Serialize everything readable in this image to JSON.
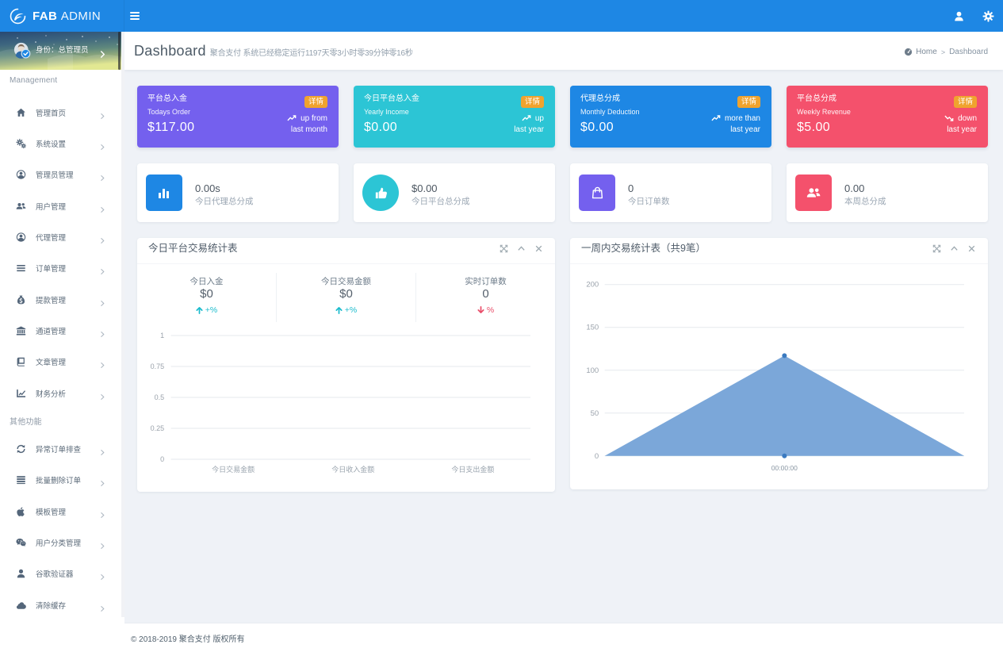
{
  "navbar": {
    "logo_bold": "FAB",
    "logo_light": "ADMIN",
    "icons": [
      "user-icon",
      "gear-icon"
    ],
    "accent_color": "#1e87e4"
  },
  "sidebar": {
    "user_panel": {
      "label": "身份：总管理员"
    },
    "sections": [
      {
        "label": "Management",
        "items": [
          {
            "icon": "home-icon",
            "label": "管理首页"
          },
          {
            "icon": "gears-icon",
            "label": "系统设置"
          },
          {
            "icon": "user-circle-icon",
            "label": "管理员管理"
          },
          {
            "icon": "users-icon",
            "label": "用户管理"
          },
          {
            "icon": "agent-circle-icon",
            "label": "代理管理"
          },
          {
            "icon": "list-icon",
            "label": "订单管理"
          },
          {
            "icon": "money-bag-icon",
            "label": "提款管理"
          },
          {
            "icon": "bank-icon",
            "label": "通道管理"
          },
          {
            "icon": "book-icon",
            "label": "文章管理"
          },
          {
            "icon": "line-chart-icon",
            "label": "财务分析"
          }
        ]
      },
      {
        "label": "其他功能",
        "items": [
          {
            "icon": "refresh-icon",
            "label": "异常订单排查"
          },
          {
            "icon": "rows-icon",
            "label": "批量删除订单"
          },
          {
            "icon": "apple-icon",
            "label": "模板管理"
          },
          {
            "icon": "wechat-icon",
            "label": "用户分类管理"
          },
          {
            "icon": "person-icon",
            "label": "谷歌验证器"
          },
          {
            "icon": "cloud-icon",
            "label": "清除缓存"
          }
        ]
      }
    ]
  },
  "header": {
    "title": "Dashboard",
    "subtitle": "聚合支付 系统已经稳定运行1197天零3小时零39分钟零16秒",
    "breadcrumb": {
      "home": "Home",
      "separator": ">",
      "current": "Dashboard"
    }
  },
  "stat_boxes": [
    {
      "title": "平台总入金",
      "subtitle": "Todays Order",
      "value": "$117.00",
      "badge": "详情",
      "trend_icon": "trend-up-icon",
      "trend_line1": "up from",
      "trend_line2": "last month",
      "color": "#7460ee"
    },
    {
      "title": "今日平台总入金",
      "subtitle": "Yearly Income",
      "value": "$0.00",
      "badge": "详情",
      "trend_icon": "trend-up-icon",
      "trend_line1": "up",
      "trend_line2": "last year",
      "color": "#2cc5d5"
    },
    {
      "title": "代理总分成",
      "subtitle": "Monthly Deduction",
      "value": "$0.00",
      "badge": "详情",
      "trend_icon": "trend-up-icon",
      "trend_line1": "more than",
      "trend_line2": "last year",
      "color": "#1e87e4"
    },
    {
      "title": "平台总分成",
      "subtitle": "Weekly Revenue",
      "value": "$5.00",
      "badge": "详情",
      "trend_icon": "trend-down-icon",
      "trend_line1": "down",
      "trend_line2": "last year",
      "color": "#f4516c"
    }
  ],
  "info_cards": [
    {
      "icon": "bar-chart-icon",
      "shape": "square",
      "color": "#1e87e4",
      "value": "0.00s",
      "label": "今日代理总分成"
    },
    {
      "icon": "thumbs-up-icon",
      "shape": "circle",
      "color": "#2cc5d5",
      "value": "$0.00",
      "label": "今日平台总分成"
    },
    {
      "icon": "shopping-bag-icon",
      "shape": "square",
      "color": "#7460ee",
      "value": "0",
      "label": "今日订单数"
    },
    {
      "icon": "users-icon",
      "shape": "square",
      "color": "#f4516c",
      "value": "0.00",
      "label": "本周总分成"
    }
  ],
  "panels": {
    "left": {
      "title": "今日平台交易统计表",
      "tools": [
        "expand-icon",
        "collapse-icon",
        "close-icon"
      ],
      "stats": [
        {
          "label": "今日入金",
          "value": "$0",
          "trend": "+%",
          "direction": "up"
        },
        {
          "label": "今日交易金额",
          "value": "$0",
          "trend": "+%",
          "direction": "up"
        },
        {
          "label": "实时订单数",
          "value": "0",
          "trend": "%",
          "direction": "down"
        }
      ]
    },
    "right": {
      "title": "一周内交易统计表（共9笔）",
      "tools": [
        "expand-icon",
        "collapse-icon",
        "close-icon"
      ]
    }
  },
  "chart_data": [
    {
      "id": "today-trade-chart",
      "type": "bar",
      "title": "今日平台交易统计表",
      "categories": [
        "今日交易金额",
        "今日收入金额",
        "今日支出金额"
      ],
      "values": [
        0,
        0,
        0
      ],
      "yticks": [
        0,
        0.25,
        0.5,
        0.75,
        1
      ],
      "ylim": [
        0,
        1
      ],
      "grid": true,
      "legend": "none"
    },
    {
      "id": "week-trade-chart",
      "type": "area",
      "title": "一周内交易统计表（共9笔）",
      "x": [
        "",
        "00:00:00",
        ""
      ],
      "series": [
        {
          "name": "orders",
          "values": [
            0,
            117,
            0
          ]
        },
        {
          "name": "baseline",
          "values": [
            null,
            0,
            null
          ]
        }
      ],
      "yticks": [
        0,
        50,
        100,
        150,
        200
      ],
      "ylim": [
        0,
        200
      ],
      "grid": true,
      "area_color": "#7ba7d9",
      "point_color": "#3b7ac0"
    }
  ],
  "footer": {
    "copyright": "© 2018-2019 聚合支付 版权所有"
  }
}
